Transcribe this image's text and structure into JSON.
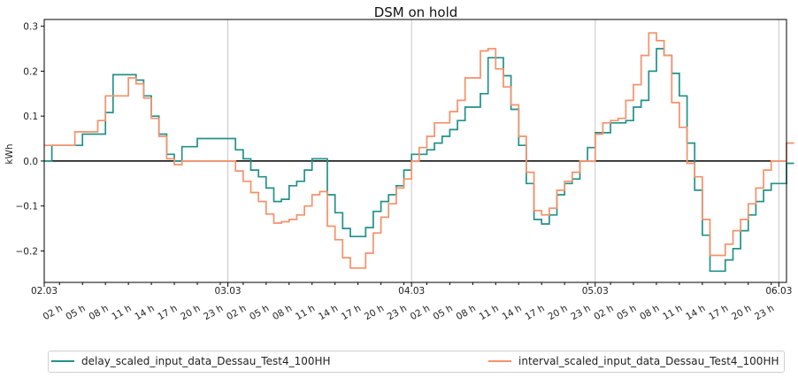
{
  "chart_data": {
    "type": "line",
    "title": "DSM on hold",
    "ylabel": "kWh",
    "xlabel": "",
    "ylim": [
      -0.27,
      0.315
    ],
    "y_ticks": [
      -0.2,
      -0.1,
      0.0,
      0.1,
      0.2,
      0.3
    ],
    "y_tick_labels": [
      "−0.2",
      "−0.1",
      "0.0",
      "0.1",
      "0.2",
      "0.3"
    ],
    "x_hours_range": [
      0,
      97
    ],
    "day_ticks": [
      {
        "hour": 0,
        "label": "02.03"
      },
      {
        "hour": 24,
        "label": "03.03"
      },
      {
        "hour": 48,
        "label": "04.03"
      },
      {
        "hour": 72,
        "label": "05.03"
      },
      {
        "hour": 96,
        "label": "06.03"
      }
    ],
    "hour_tick_labels": [
      "23 h",
      "02 h",
      "05 h",
      "08 h",
      "11 h",
      "14 h",
      "17 h",
      "20 h",
      "23 h",
      "02 h",
      "05 h",
      "08 h",
      "11 h",
      "14 h",
      "17 h",
      "20 h",
      "23 h",
      "02 h",
      "05 h",
      "08 h",
      "11 h",
      "14 h",
      "17 h",
      "20 h",
      "23 h",
      "02 h",
      "05 h",
      "08 h",
      "11 h",
      "14 h",
      "17 h",
      "20 h",
      "23 h",
      "02 h",
      "05 h",
      "08 h",
      "11 h",
      "14 h",
      "17 h",
      "20 h",
      "23 h"
    ],
    "series": [
      {
        "name": "delay_scaled_input_data_Dessau_Test4_100HH",
        "color": "#22918a",
        "step": "post",
        "values": [
          0.0,
          0.035,
          0.035,
          0.035,
          0.035,
          0.06,
          0.06,
          0.06,
          0.108,
          0.192,
          0.192,
          0.192,
          0.18,
          0.145,
          0.1,
          0.06,
          0.015,
          0.0,
          0.032,
          0.032,
          0.05,
          0.05,
          0.05,
          0.05,
          0.05,
          0.025,
          0.005,
          -0.02,
          -0.035,
          -0.06,
          -0.09,
          -0.085,
          -0.055,
          -0.045,
          -0.02,
          0.005,
          0.005,
          -0.075,
          -0.115,
          -0.15,
          -0.168,
          -0.168,
          -0.148,
          -0.112,
          -0.09,
          -0.075,
          -0.055,
          -0.02,
          0.015,
          0.015,
          0.025,
          0.04,
          0.055,
          0.07,
          0.09,
          0.12,
          0.12,
          0.15,
          0.23,
          0.23,
          0.19,
          0.115,
          0.035,
          -0.05,
          -0.13,
          -0.14,
          -0.12,
          -0.075,
          -0.05,
          -0.04,
          0.0,
          0.03,
          0.063,
          0.063,
          0.085,
          0.085,
          0.09,
          0.12,
          0.135,
          0.2,
          0.25,
          0.235,
          0.195,
          0.145,
          0.04,
          -0.065,
          -0.165,
          -0.245,
          -0.245,
          -0.22,
          -0.195,
          -0.155,
          -0.12,
          -0.09,
          -0.065,
          -0.05,
          -0.05,
          -0.005
        ]
      },
      {
        "name": "interval_scaled_input_data_Dessau_Test4_100HH",
        "color": "#f5916a",
        "step": "post",
        "values": [
          0.035,
          0.035,
          0.035,
          0.035,
          0.065,
          0.065,
          0.065,
          0.09,
          0.145,
          0.145,
          0.145,
          0.185,
          0.172,
          0.14,
          0.095,
          0.055,
          0.005,
          -0.008,
          0.0,
          0.0,
          0.0,
          0.0,
          0.0,
          0.0,
          0.0,
          -0.022,
          -0.045,
          -0.07,
          -0.09,
          -0.118,
          -0.138,
          -0.135,
          -0.13,
          -0.12,
          -0.1,
          -0.075,
          -0.068,
          -0.145,
          -0.175,
          -0.215,
          -0.238,
          -0.238,
          -0.205,
          -0.16,
          -0.125,
          -0.095,
          -0.06,
          -0.04,
          0.0,
          0.03,
          0.055,
          0.085,
          0.085,
          0.11,
          0.135,
          0.185,
          0.185,
          0.245,
          0.25,
          0.205,
          0.165,
          0.125,
          0.055,
          -0.025,
          -0.11,
          -0.12,
          -0.105,
          -0.065,
          -0.045,
          -0.025,
          0.0,
          0.0,
          0.06,
          0.085,
          0.09,
          0.095,
          0.135,
          0.17,
          0.235,
          0.285,
          0.268,
          0.235,
          0.13,
          0.075,
          -0.005,
          -0.035,
          -0.13,
          -0.21,
          -0.21,
          -0.185,
          -0.155,
          -0.13,
          -0.095,
          -0.06,
          -0.02,
          0.0,
          0.0,
          0.04
        ]
      }
    ],
    "horizontal_line": {
      "y": 0.0,
      "color": "#000000"
    },
    "vertical_grid": "days",
    "legend_position": "bottom"
  }
}
